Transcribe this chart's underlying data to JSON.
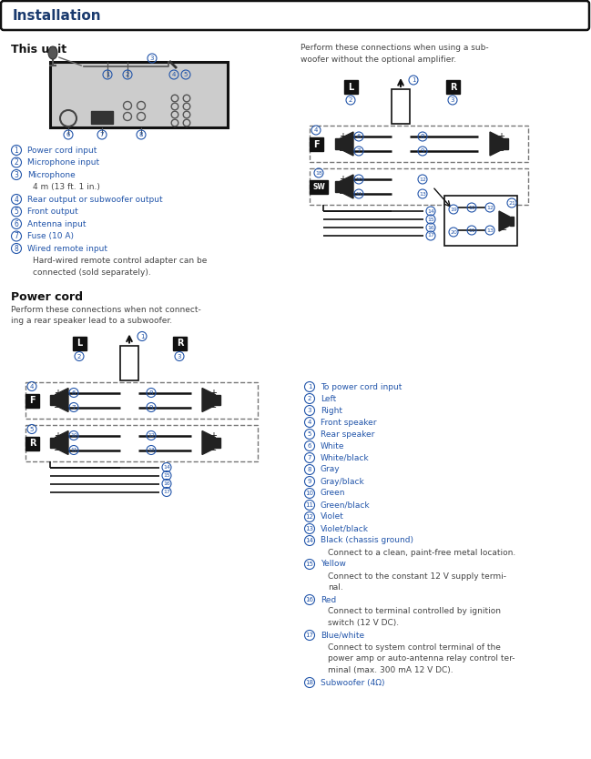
{
  "title": "Installation",
  "bg_color": "#ffffff",
  "blue_color": "#2255aa",
  "dark": "#111111",
  "gray": "#888888",
  "text_gray": "#444444",
  "light_gray": "#cccccc",
  "left_list": [
    [
      "1",
      "Power cord input",
      true
    ],
    [
      "2",
      "Microphone input",
      true
    ],
    [
      "3",
      "Microphone",
      true
    ],
    [
      "",
      "4 m (13 ft. 1 in.)",
      false
    ],
    [
      "4",
      "Rear output or subwoofer output",
      true
    ],
    [
      "5",
      "Front output",
      true
    ],
    [
      "6",
      "Antenna input",
      true
    ],
    [
      "7",
      "Fuse (10 A)",
      true
    ],
    [
      "8",
      "Wired remote input",
      true
    ],
    [
      "",
      "Hard-wired remote control adapter can be",
      false
    ],
    [
      "",
      "connected (sold separately).",
      false
    ]
  ],
  "right_list": [
    [
      "1",
      "To power cord input",
      true
    ],
    [
      "2",
      "Left",
      true
    ],
    [
      "3",
      "Right",
      true
    ],
    [
      "4",
      "Front speaker",
      true
    ],
    [
      "5",
      "Rear speaker",
      true
    ],
    [
      "6",
      "White",
      true
    ],
    [
      "7",
      "White/black",
      true
    ],
    [
      "8",
      "Gray",
      true
    ],
    [
      "9",
      "Gray/black",
      true
    ],
    [
      "10",
      "Green",
      true
    ],
    [
      "11",
      "Green/black",
      true
    ],
    [
      "12",
      "Violet",
      true
    ],
    [
      "13",
      "Violet/black",
      true
    ],
    [
      "14",
      "Black (chassis ground)",
      true
    ],
    [
      "",
      "Connect to a clean, paint-free metal location.",
      false
    ],
    [
      "15",
      "Yellow",
      true
    ],
    [
      "",
      "Connect to the constant 12 V supply termi-",
      false
    ],
    [
      "",
      "nal.",
      false
    ],
    [
      "16",
      "Red",
      true
    ],
    [
      "",
      "Connect to terminal controlled by ignition",
      false
    ],
    [
      "",
      "switch (12 V DC).",
      false
    ],
    [
      "17",
      "Blue/white",
      true
    ],
    [
      "",
      "Connect to system control terminal of the",
      false
    ],
    [
      "",
      "power amp or auto-antenna relay control ter-",
      false
    ],
    [
      "",
      "minal (max. 300 mA 12 V DC).",
      false
    ],
    [
      "18",
      "Subwoofer (4Ω)",
      true
    ]
  ],
  "power_desc": "Perform these connections when not connect-\ning a rear speaker lead to a subwoofer.",
  "sub_desc": "Perform these connections when using a sub-\nwoofer without the optional amplifier."
}
